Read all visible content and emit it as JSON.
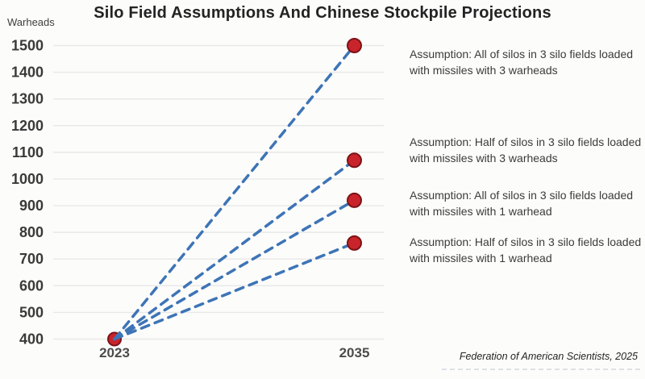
{
  "title": "Silo Field Assumptions And Chinese Stockpile Projections",
  "y_axis_unit": "Warheads",
  "attribution": "Federation of American Scientists, 2025",
  "annotations": [
    {
      "text": "Assumption: All of silos in 3 silo fields loaded with missiles with 3 warheads"
    },
    {
      "text": "Assumption: Half of silos in 3 silo fields loaded with missiles with 3 warheads"
    },
    {
      "text": "Assumption: All of silos in 3 silo fields loaded with missiles with 1 warhead"
    },
    {
      "text": "Assumption: Half of silos in 3 silo fields loaded with missiles with 1 warhead"
    }
  ],
  "chart_data": {
    "type": "line",
    "title": "Silo Field Assumptions And Chinese Stockpile Projections",
    "xlabel": "",
    "ylabel": "Warheads",
    "x": [
      2023,
      2035
    ],
    "x_tick_labels": [
      "2023",
      "2035"
    ],
    "yticks": [
      400,
      500,
      600,
      700,
      800,
      900,
      1000,
      1100,
      1200,
      1300,
      1400,
      1500
    ],
    "ylim": [
      400,
      1500
    ],
    "grid": "horizontal",
    "line_style": "dashed",
    "legend_position": "right-annotations",
    "colors": {
      "line": "#3d74b6",
      "marker_fill": "#c9242b",
      "marker_stroke": "#7c1216",
      "gridline": "#e8e8e8",
      "tick_text": "#3a3a3a",
      "x_label_text": "#4c4c4c"
    },
    "series": [
      {
        "name": "All of silos in 3 silo fields loaded with missiles with 3 warheads",
        "values": [
          400,
          1500
        ]
      },
      {
        "name": "Half of silos in 3 silo fields loaded with missiles with 3 warheads",
        "values": [
          400,
          1070
        ]
      },
      {
        "name": "All of silos in 3 silo fields loaded with missiles with 1 warhead",
        "values": [
          400,
          920
        ]
      },
      {
        "name": "Half of silos in 3 silo fields loaded with missiles with 1 warhead",
        "values": [
          400,
          760
        ]
      }
    ]
  }
}
